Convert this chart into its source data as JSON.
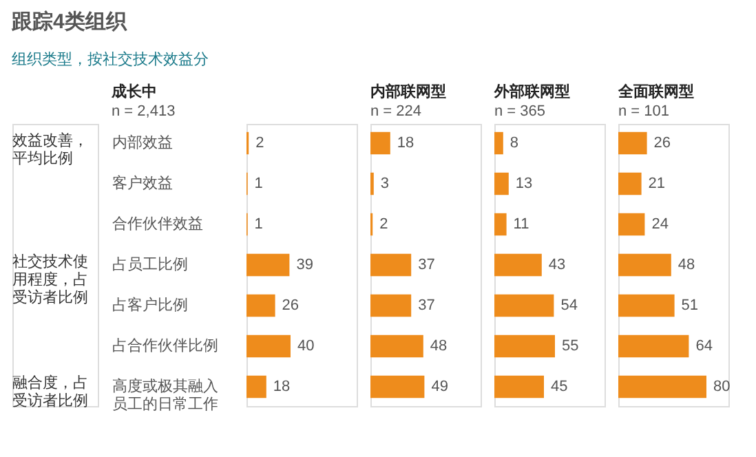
{
  "chart_data": [
    {
      "type": "bar",
      "orientation": "horizontal",
      "title": "成长中",
      "subtitle": "n = 2,413",
      "annotations": [
        "跟踪4类组织",
        "组织类型，按社交技术效益分",
        "效益改善，平均比例",
        "社交技术使用程度，占受访者比例",
        "融合度，占受访者比例"
      ],
      "categories": [
        "内部效益",
        "客户效益",
        "合作伙伴效益",
        "占员工比例",
        "占客户比例",
        "占合作伙伴比例",
        "高度或极其融入员工的日常工作"
      ],
      "values": [
        2,
        1,
        1,
        39,
        26,
        40,
        18
      ],
      "color": "#ee8c1c",
      "xlim": [
        0,
        100
      ],
      "data_labels": true,
      "tick_labels": "y"
    },
    {
      "type": "bar",
      "orientation": "horizontal",
      "title": "内部联网型",
      "subtitle": "n = 224",
      "categories": [
        "内部效益",
        "客户效益",
        "合作伙伴效益",
        "占员工比例",
        "占客户比例",
        "占合作伙伴比例",
        "高度或极其融入员工的日常工作"
      ],
      "values": [
        18,
        3,
        2,
        37,
        37,
        48,
        49
      ],
      "color": "#ee8c1c",
      "xlim": [
        0,
        100
      ],
      "data_labels": true,
      "tick_labels": false
    },
    {
      "type": "bar",
      "orientation": "horizontal",
      "title": "外部联网型",
      "subtitle": "n = 365",
      "categories": [
        "内部效益",
        "客户效益",
        "合作伙伴效益",
        "占员工比例",
        "占客户比例",
        "占合作伙伴比例",
        "高度或极其融入员工的日常工作"
      ],
      "values": [
        8,
        13,
        11,
        43,
        54,
        55,
        45
      ],
      "color": "#ee8c1c",
      "xlim": [
        0,
        100
      ],
      "data_labels": true,
      "tick_labels": false
    },
    {
      "type": "bar",
      "orientation": "horizontal",
      "title": "全面联网型",
      "subtitle": "n = 101",
      "categories": [
        "内部效益",
        "客户效益",
        "合作伙伴效益",
        "占员工比例",
        "占客户比例",
        "占合作伙伴比例",
        "高度或极其融入员工的日常工作"
      ],
      "values": [
        26,
        21,
        24,
        48,
        51,
        64,
        80
      ],
      "color": "#ee8c1c",
      "xlim": [
        0,
        100
      ],
      "data_labels": true,
      "tick_labels": false
    }
  ]
}
